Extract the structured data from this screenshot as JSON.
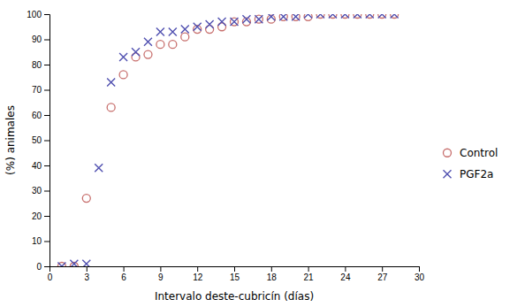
{
  "chart_data": {
    "type": "scatter",
    "xlabel": "Intervalo deste-cubricín (días)",
    "ylabel": "(%) animales",
    "series": [
      {
        "name": "Control",
        "color": "#c8706e",
        "marker": "circle",
        "x": [
          1,
          2,
          3,
          5,
          6,
          7,
          8,
          9,
          10,
          11,
          12,
          13,
          14,
          15,
          16,
          17,
          18,
          19,
          20,
          21,
          22,
          23,
          24,
          25,
          26,
          27,
          28
        ],
        "values": [
          0,
          0,
          27,
          63,
          76,
          83,
          84,
          88,
          88,
          91,
          94,
          94,
          95,
          97,
          97,
          98,
          98,
          99,
          99,
          99,
          100,
          100,
          100,
          100,
          100,
          100,
          100
        ]
      },
      {
        "name": "PGF2a",
        "color": "#5050b0",
        "marker": "x",
        "x": [
          1,
          2,
          3,
          4,
          5,
          6,
          7,
          8,
          9,
          10,
          11,
          12,
          13,
          14,
          15,
          16,
          17,
          18,
          19,
          20,
          21,
          22,
          23,
          24,
          25,
          26,
          27,
          28
        ],
        "values": [
          0,
          1,
          1,
          39,
          73,
          83,
          85,
          89,
          93,
          93,
          94,
          95,
          96,
          97,
          97,
          98,
          98,
          99,
          99,
          99,
          100,
          100,
          100,
          100,
          100,
          100,
          100,
          100
        ]
      }
    ],
    "xlim": [
      0,
      30
    ],
    "ylim": [
      0,
      100
    ],
    "xticks": [
      0,
      3,
      6,
      9,
      12,
      15,
      18,
      21,
      24,
      27,
      30
    ],
    "yticks": [
      0,
      10,
      20,
      30,
      40,
      50,
      60,
      70,
      80,
      90,
      100
    ],
    "legend": "right"
  }
}
